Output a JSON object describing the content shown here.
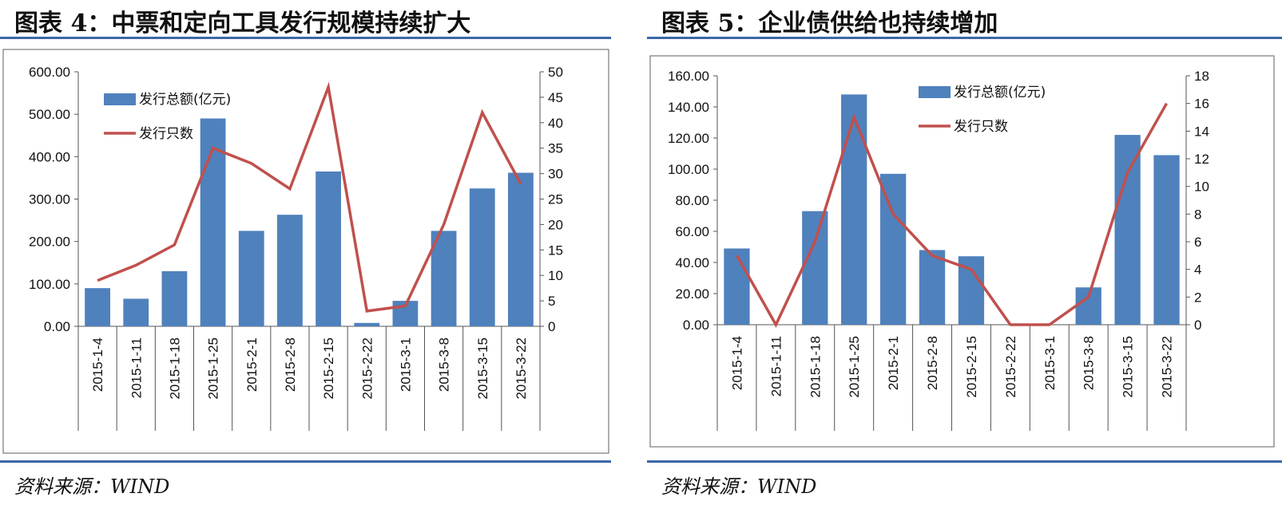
{
  "figures": [
    {
      "title": "图表 4：中票和定向工具发行规模持续扩大",
      "source": "资料来源：WIND"
    },
    {
      "title": "图表 5：企业债供给也持续增加",
      "source": "资料来源：WIND"
    }
  ],
  "colors": {
    "bar": "#4f81bd",
    "line": "#c0504d",
    "rule": "#3b67a8"
  },
  "chart_data": [
    {
      "type": "bar",
      "categories": [
        "2015-1-4",
        "2015-1-11",
        "2015-1-18",
        "2015-1-25",
        "2015-2-1",
        "2015-2-8",
        "2015-2-15",
        "2015-2-22",
        "2015-3-1",
        "2015-3-8",
        "2015-3-15",
        "2015-3-22"
      ],
      "series": [
        {
          "name": "发行总额(亿元)",
          "type": "bar",
          "axis": "left",
          "values": [
            90,
            65,
            130,
            490,
            225,
            263,
            365,
            8,
            60,
            225,
            325,
            362
          ]
        },
        {
          "name": "发行只数",
          "type": "line",
          "axis": "right",
          "values": [
            9,
            12,
            16,
            35,
            32,
            27,
            47,
            3,
            4,
            20,
            42,
            28
          ]
        }
      ],
      "y_left": {
        "min": 0,
        "max": 600,
        "ticks": [
          "0.00",
          "100.00",
          "200.00",
          "300.00",
          "400.00",
          "500.00",
          "600.00"
        ]
      },
      "y_right": {
        "min": 0,
        "max": 50,
        "ticks": [
          "0",
          "5",
          "10",
          "15",
          "20",
          "25",
          "30",
          "35",
          "40",
          "45",
          "50"
        ]
      },
      "legend_position": "top-left"
    },
    {
      "type": "bar",
      "categories": [
        "2015-1-4",
        "2015-1-11",
        "2015-1-18",
        "2015-1-25",
        "2015-2-1",
        "2015-2-8",
        "2015-2-15",
        "2015-2-22",
        "2015-3-1",
        "2015-3-8",
        "2015-3-15",
        "2015-3-22"
      ],
      "series": [
        {
          "name": "发行总额(亿元)",
          "type": "bar",
          "axis": "left",
          "values": [
            49,
            0,
            73,
            148,
            97,
            48,
            44,
            0,
            0,
            24,
            122,
            109
          ]
        },
        {
          "name": "发行只数",
          "type": "line",
          "axis": "right",
          "values": [
            5,
            0,
            6,
            15,
            8,
            5,
            4,
            0,
            0,
            2,
            11,
            16
          ]
        }
      ],
      "y_left": {
        "min": 0,
        "max": 160,
        "ticks": [
          "0.00",
          "20.00",
          "40.00",
          "60.00",
          "80.00",
          "100.00",
          "120.00",
          "140.00",
          "160.00"
        ]
      },
      "y_right": {
        "min": 0,
        "max": 18,
        "ticks": [
          "0",
          "2",
          "4",
          "6",
          "8",
          "10",
          "12",
          "14",
          "16",
          "18"
        ]
      },
      "legend_position": "top-center"
    }
  ]
}
